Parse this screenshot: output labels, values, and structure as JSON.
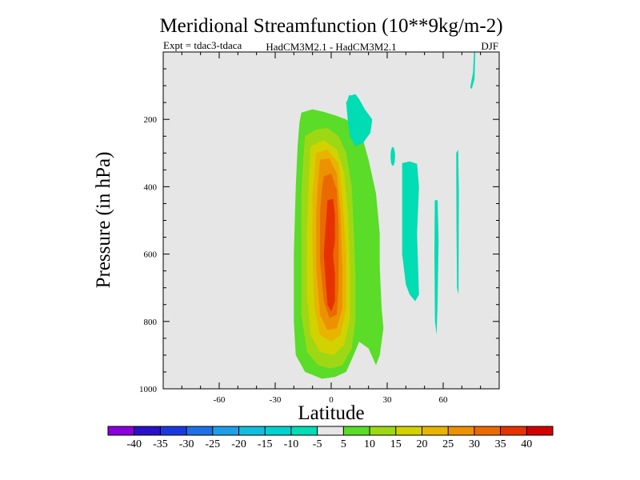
{
  "chart_data": {
    "type": "heatmap",
    "title": "Meridional Streamfunction (10**9kg/m-2)",
    "subtitle_left": "Expt = tdac3-tdaca",
    "subtitle_center": "HadCM3M2.1 - HadCM3M2.1",
    "season": "DJF",
    "xlabel": "Latitude",
    "ylabel": "Pressure (in hPa)",
    "xlim": [
      -90,
      90
    ],
    "ylim": [
      1000,
      0
    ],
    "x_ticks": [
      -60,
      -30,
      0,
      30,
      60
    ],
    "y_ticks": [
      200,
      400,
      600,
      800,
      1000
    ],
    "colorbar": {
      "labels": [
        "-40",
        "-35",
        "-30",
        "-25",
        "-20",
        "-15",
        "-10",
        "-5",
        "5",
        "10",
        "15",
        "20",
        "25",
        "30",
        "35",
        "40"
      ],
      "colors": [
        "#8a00dc",
        "#2a10c8",
        "#1a3ae0",
        "#1e70e6",
        "#1e9ee8",
        "#12bede",
        "#00d2d0",
        "#00dcb4",
        "#e6e6e6",
        "#5adc28",
        "#9ed814",
        "#d2d200",
        "#e8b400",
        "#ec9200",
        "#ea6a00",
        "#e63200",
        "#d20000"
      ]
    },
    "background_color": "#e6e6e6",
    "features": [
      {
        "name": "positive-cell",
        "center_lat": 0,
        "levels": [
          5,
          10,
          15,
          20,
          25,
          30,
          35
        ],
        "pressure_range": [
          180,
          970
        ],
        "peak_pressure": 620
      },
      {
        "name": "negative-patch-upper",
        "level": -5,
        "lat_range": [
          8,
          22
        ],
        "pressure_range": [
          120,
          280
        ]
      },
      {
        "name": "negative-patch-mid",
        "level": -5,
        "lat_range": [
          38,
          46
        ],
        "pressure_range": [
          320,
          740
        ]
      },
      {
        "name": "negative-streak-50N",
        "level": -5,
        "lat": 56,
        "pressure_range": [
          440,
          840
        ]
      },
      {
        "name": "negative-streak-67N",
        "level": -5,
        "lat": 67,
        "pressure_range": [
          300,
          720
        ]
      },
      {
        "name": "negative-streak-top",
        "level": -5,
        "lat": 75,
        "pressure_range": [
          0,
          100
        ]
      },
      {
        "name": "negative-speck",
        "level": -5,
        "lat": 32,
        "pressure_range": [
          290,
          340
        ]
      }
    ]
  }
}
